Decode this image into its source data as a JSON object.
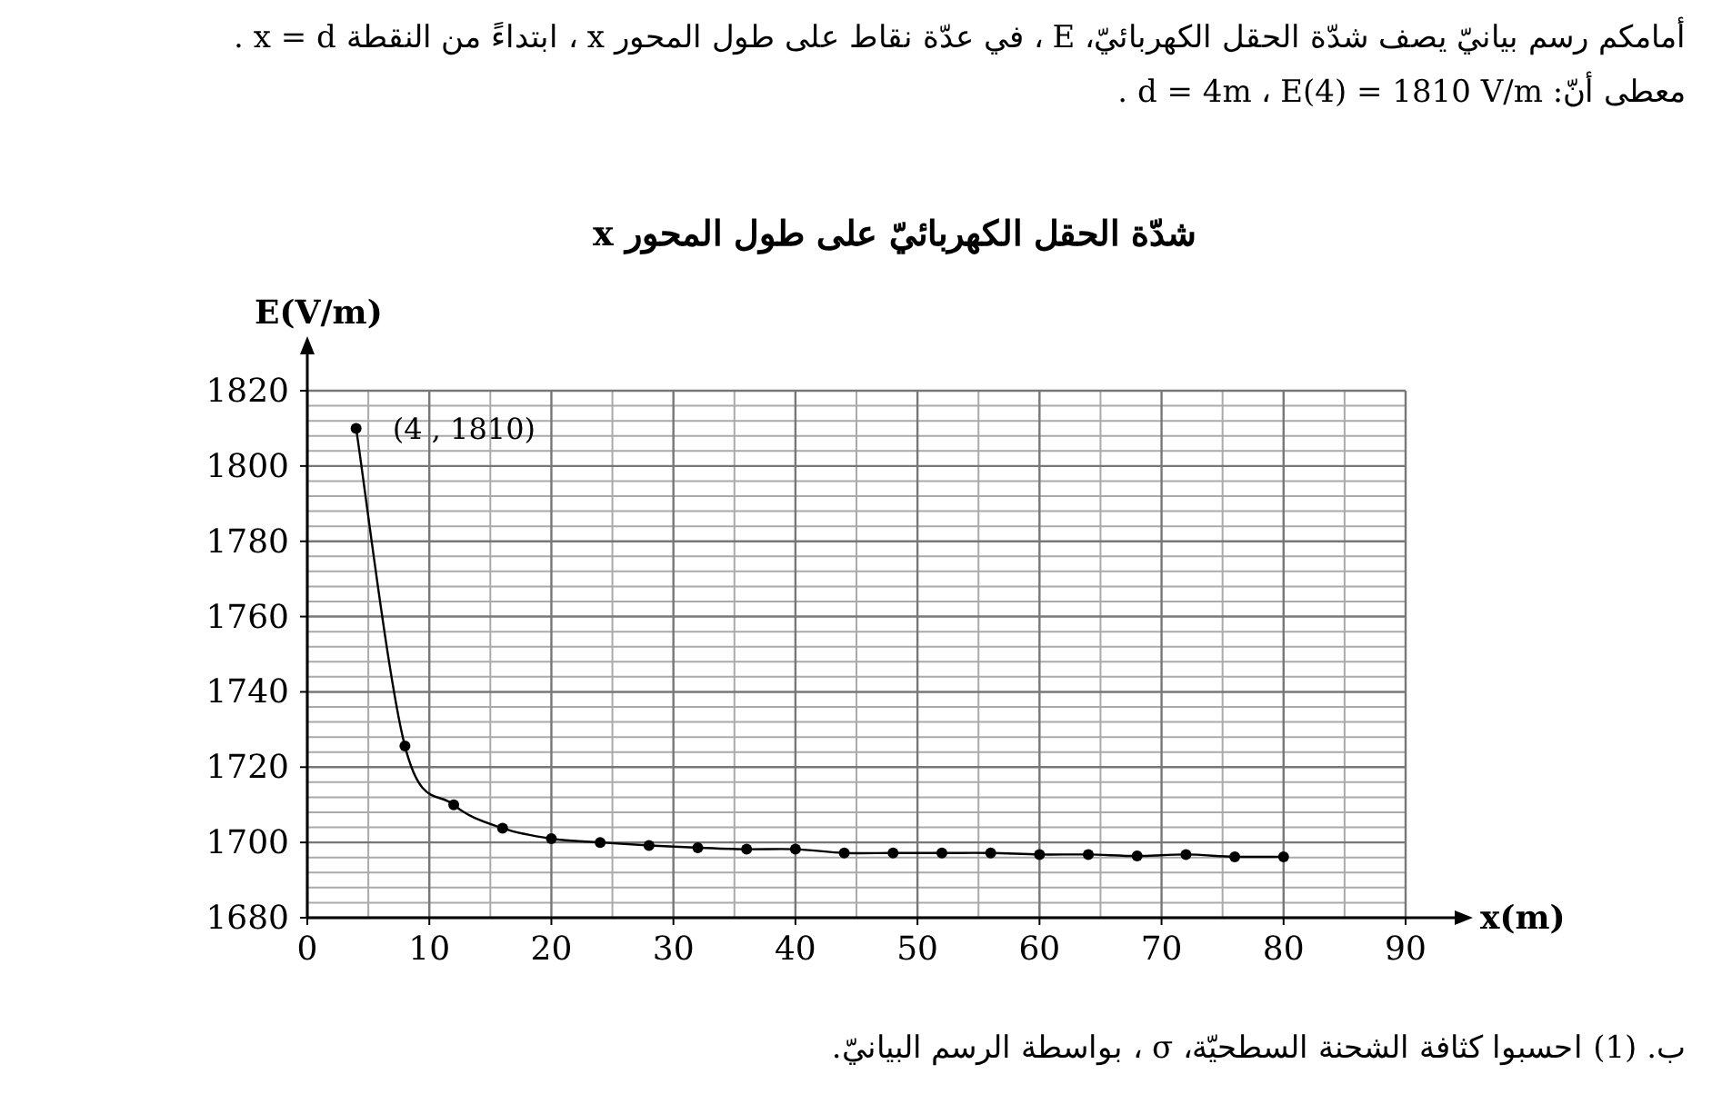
{
  "chart_data": {
    "type": "line",
    "title": "شدّة الحقل الكهربائيّ على طول المحور x",
    "xlabel": "x(m)",
    "ylabel": "E(V/m)",
    "annotations": [
      "أمامكم رسم بيانيّ يصف شدّة الحقل الكهربائيّ، E ، في عدّة نقاط على طول المحور x ، ابتداءً من النقطة x = d .",
      "معطى أنّ: d = 4m ، E(4) = 1810 V/m .",
      {
        "text": "(4 , 1810)",
        "x": 4,
        "y": 1810
      },
      "ب. (1) احسبوا كثافة الشحنة السطحيّة، σ ، بواسطة الرسم البيانيّ."
    ],
    "x": [
      4,
      8,
      12,
      16,
      20,
      24,
      28,
      32,
      36,
      40,
      44,
      48,
      52,
      56,
      60,
      64,
      68,
      72,
      76,
      80
    ],
    "series": [
      {
        "color": "#000000",
        "values": [
          1810,
          1725.6,
          1710,
          1703.8,
          1701,
          1700,
          1699.2,
          1698.6,
          1698.2,
          1698.2,
          1697.2,
          1697.2,
          1697.2,
          1697.2,
          1696.8,
          1696.8,
          1696.4,
          1696.8,
          1696.2,
          1696.2
        ]
      }
    ],
    "xlim": [
      0,
      90
    ],
    "ylim": [
      1680,
      1820
    ],
    "xticks": [
      0,
      10,
      20,
      30,
      40,
      50,
      60,
      70,
      80,
      90
    ],
    "yticks": [
      1680,
      1700,
      1720,
      1740,
      1760,
      1780,
      1800,
      1820
    ],
    "grid": true,
    "marker": "circle",
    "line_style": "solid"
  }
}
